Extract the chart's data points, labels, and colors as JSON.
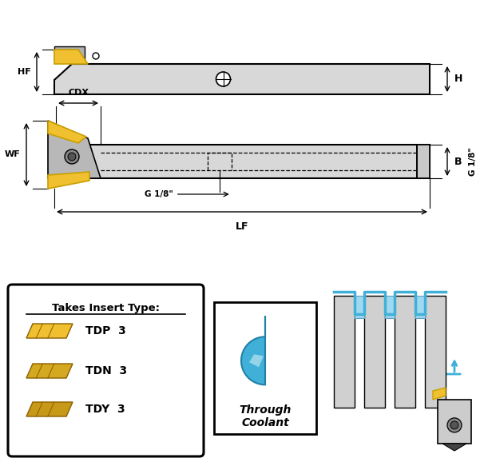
{
  "bg_color": "#ffffff",
  "shank_color": "#d8d8d8",
  "shank_outline": "#000000",
  "insert_color": "#f0c030",
  "insert_outline": "#c8a000",
  "coolant_blue": "#40b0d8",
  "coolant_dark": "#2080a8",
  "groove_blue": "#a0d8f0",
  "inserts": [
    "TDP  3",
    "TDN  3",
    "TDY  3"
  ]
}
